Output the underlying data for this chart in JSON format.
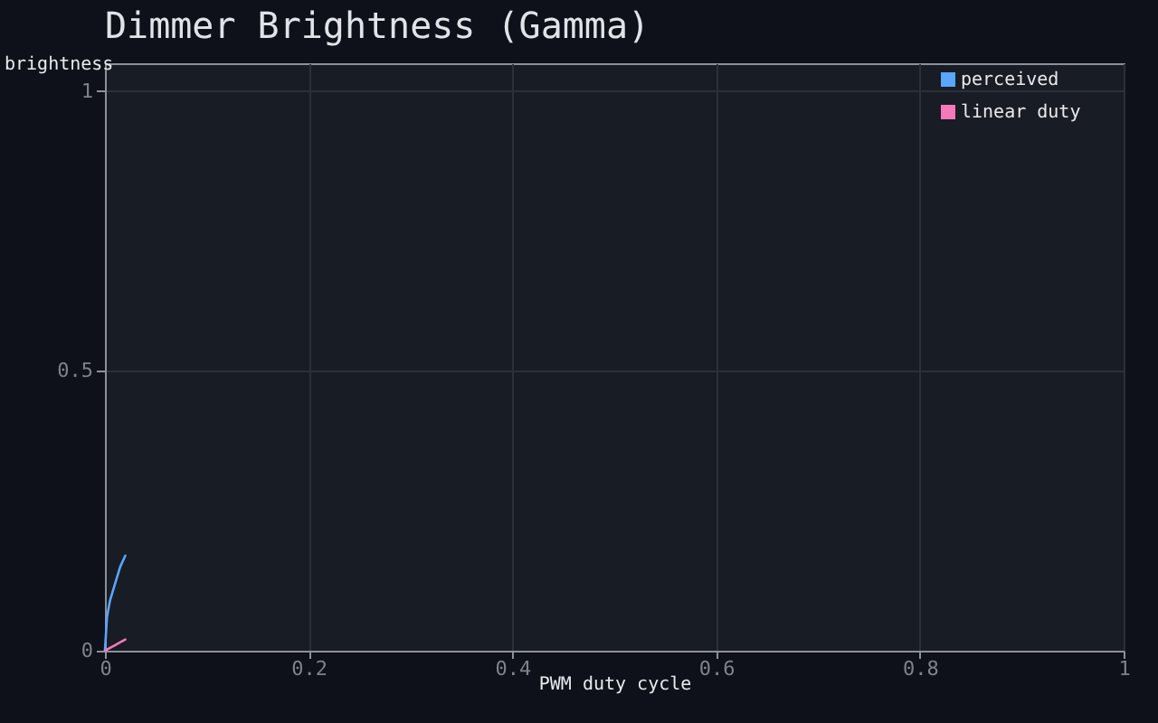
{
  "chart_data": {
    "type": "line",
    "title": "Dimmer Brightness (Gamma)",
    "xlabel": "PWM duty cycle",
    "ylabel": "brightness",
    "x": [
      0,
      0.002,
      0.005,
      0.01,
      0.015,
      0.02
    ],
    "series": [
      {
        "name": "perceived",
        "color": "#58a6ff",
        "values": [
          0,
          0.06,
          0.09,
          0.12,
          0.15,
          0.17
        ]
      },
      {
        "name": "linear duty",
        "color": "#f778ba",
        "values": [
          0,
          0.002,
          0.005,
          0.01,
          0.015,
          0.02
        ]
      }
    ],
    "xlim": [
      0,
      1
    ],
    "ylim": [
      0,
      1.05
    ],
    "xticks": [
      0,
      0.2,
      0.4,
      0.6,
      0.8,
      1
    ],
    "yticks": [
      0,
      0.5,
      1
    ],
    "grid": true,
    "legend": "top right",
    "line_style": "solid"
  }
}
